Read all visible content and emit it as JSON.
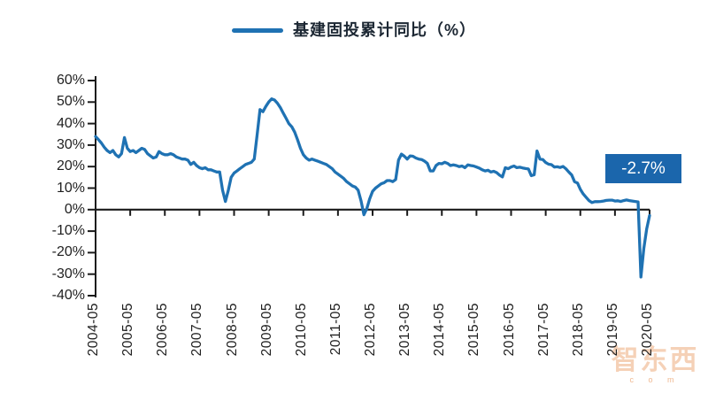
{
  "legend": {
    "label": "基建固投累计同比（%）",
    "line_color": "#1f72b3"
  },
  "annotation": {
    "text": "-2.7%",
    "bg": "#1b66ac",
    "text_color": "#ffffff"
  },
  "watermark": {
    "text": "智东西",
    "sub": "c o m"
  },
  "palette": {
    "axis": "#1a1a1a",
    "label_text": "#1f1f1f",
    "line": "#1f72b3"
  },
  "chart_data": {
    "type": "line",
    "title": "",
    "xlabel": "",
    "ylabel": "",
    "x_start": "2004-05",
    "x_end": "2020-05",
    "x_frequency": "monthly",
    "x_tick_labels": [
      "2004-05",
      "2005-05",
      "2006-05",
      "2007-05",
      "2008-05",
      "2009-05",
      "2010-05",
      "2011-05",
      "2012-05",
      "2013-05",
      "2014-05",
      "2015-05",
      "2016-05",
      "2017-05",
      "2018-05",
      "2019-05",
      "2020-05"
    ],
    "y_tick_labels": [
      "60%",
      "50%",
      "40%",
      "30%",
      "20%",
      "10%",
      "0%",
      "-10%",
      "-20%",
      "-30%",
      "-40%"
    ],
    "ylim": [
      -40,
      60
    ],
    "ytick_step": 10,
    "grid": false,
    "legend_position": "top-center",
    "axis_cross_at": 0,
    "annotation": {
      "text": "-2.7%",
      "value": -2.7,
      "x": "2020-05"
    },
    "series": [
      {
        "name": "基建固投累计同比（%）",
        "color": "#1f72b3",
        "values": [
          34,
          32.5,
          31,
          29,
          27.5,
          26.5,
          27.5,
          25.5,
          24.5,
          26,
          33.5,
          28.5,
          27,
          27.5,
          26.5,
          27.5,
          28.5,
          28,
          26,
          25,
          24,
          24.5,
          27,
          26,
          25.5,
          25.5,
          26,
          25.5,
          24.5,
          24,
          23.5,
          23.5,
          23,
          21,
          22,
          20.5,
          19.5,
          19,
          19.5,
          18.5,
          18.5,
          18,
          17.5,
          17.5,
          9,
          3.8,
          9,
          15,
          17,
          18,
          19,
          20,
          21,
          21.5,
          22,
          23.5,
          35,
          46.5,
          45.5,
          48,
          50,
          51.5,
          51,
          49.5,
          47.5,
          45,
          42.5,
          40,
          38.5,
          36,
          32.5,
          28.5,
          25.5,
          24,
          23,
          23.5,
          23,
          22.5,
          22,
          21.5,
          21,
          20,
          19,
          17.5,
          16.5,
          15.5,
          14.5,
          13,
          12,
          11,
          10.5,
          9,
          4,
          -2.4,
          0.5,
          5,
          8.5,
          10,
          11,
          12,
          12.5,
          13.5,
          13.5,
          13,
          14,
          23,
          25.8,
          24.8,
          23.5,
          25,
          24.8,
          24,
          23.5,
          23.3,
          22.5,
          21.5,
          18,
          18,
          20.5,
          21.5,
          21.3,
          22,
          21.5,
          20.5,
          20.8,
          20.5,
          20,
          20.3,
          19.5,
          20.8,
          20.5,
          20.3,
          19.8,
          19.3,
          18.5,
          18,
          18.3,
          17.5,
          17.8,
          17.2,
          16,
          15.2,
          19.5,
          19,
          19.8,
          20.3,
          19.5,
          19.7,
          19.4,
          19.1,
          18.9,
          15.8,
          16.2,
          27.3,
          23.5,
          23.3,
          21.9,
          21.1,
          20.9,
          19.8,
          19.9,
          19.6,
          20.1,
          19,
          17.5,
          16.1,
          13,
          12.4,
          9.4,
          7.3,
          5.7,
          4.2,
          3.3,
          3.7,
          3.7,
          3.8,
          4,
          4.3,
          4.4,
          4.4,
          4,
          4.1,
          3.8,
          4.2,
          4.5,
          4.2,
          4,
          3.8,
          3.6,
          -31.3,
          -18,
          -9,
          -2.7
        ]
      }
    ]
  }
}
